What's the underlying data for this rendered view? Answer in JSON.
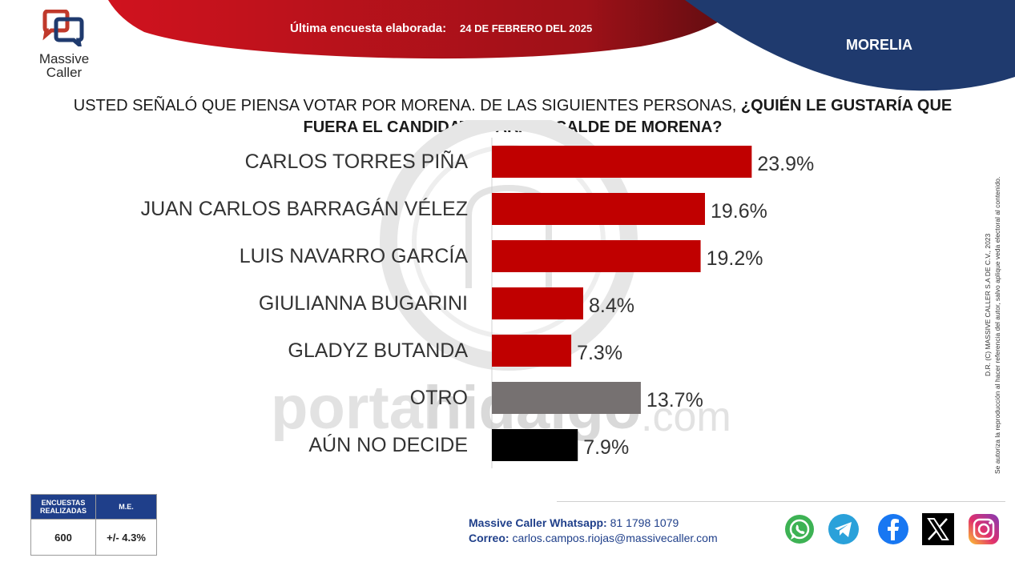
{
  "header": {
    "brand_line1": "Massive",
    "brand_line2": "Caller",
    "survey_label": "Última encuesta elaborada:",
    "survey_date": "24 DE FEBRERO DEL 2025",
    "city": "MORELIA"
  },
  "question": {
    "normal": "USTED SEÑALÓ QUE PIENSA VOTAR POR MORENA.  DE LAS SIGUIENTES PERSONAS, ",
    "bold_line1": "¿QUIÉN LE GUSTARÍA QUE",
    "bold_line2": "FUERA EL CANDIDATO PARA ALCALDE DE MORENA?"
  },
  "watermark": {
    "text_portal": "portal",
    "text_hidalgo": "hidalgo",
    "text_com": ".com"
  },
  "side_note": {
    "line1": "D.R. (C) MASSIVE CALLER S.A DE C.V., 2023",
    "line2": "Se autoriza la reproducción al hacer referencia del autor, salvo aplique veda electoral al contenido."
  },
  "stats": {
    "header_encuestas": "ENCUESTAS REALIZADAS",
    "header_me": "M.E.",
    "encuestas": "600",
    "me": "+/- 4.3%"
  },
  "contact": {
    "whatsapp_label": "Massive Caller Whatsapp:",
    "whatsapp_number": "81 1798 1079",
    "email_label": "Correo:",
    "email": "carlos.campos.riojas@massivecaller.com"
  },
  "social_icons": [
    "whatsapp-icon",
    "telegram-icon",
    "facebook-icon",
    "x-icon",
    "instagram-icon"
  ],
  "colors": {
    "red": "#c00000",
    "gray": "#767171",
    "black": "#000000",
    "navy": "#1f3a6e"
  },
  "chart_data": {
    "type": "bar",
    "orientation": "horizontal",
    "categories": [
      "CARLOS TORRES PIÑA",
      "JUAN CARLOS BARRAGÁN VÉLEZ",
      "LUIS NAVARRO GARCÍA",
      "GIULIANNA BUGARINI",
      "GLADYZ BUTANDA",
      "OTRO",
      "AÚN NO DECIDE"
    ],
    "values": [
      23.9,
      19.6,
      19.2,
      8.4,
      7.3,
      13.7,
      7.9
    ],
    "labels": [
      "23.9%",
      "19.6%",
      "19.2%",
      "8.4%",
      "7.3%",
      "13.7%",
      "7.9%"
    ],
    "bar_colors": [
      "#c00000",
      "#c00000",
      "#c00000",
      "#c00000",
      "#c00000",
      "#767171",
      "#000000"
    ],
    "xlim": [
      0,
      28
    ],
    "grid": false
  }
}
